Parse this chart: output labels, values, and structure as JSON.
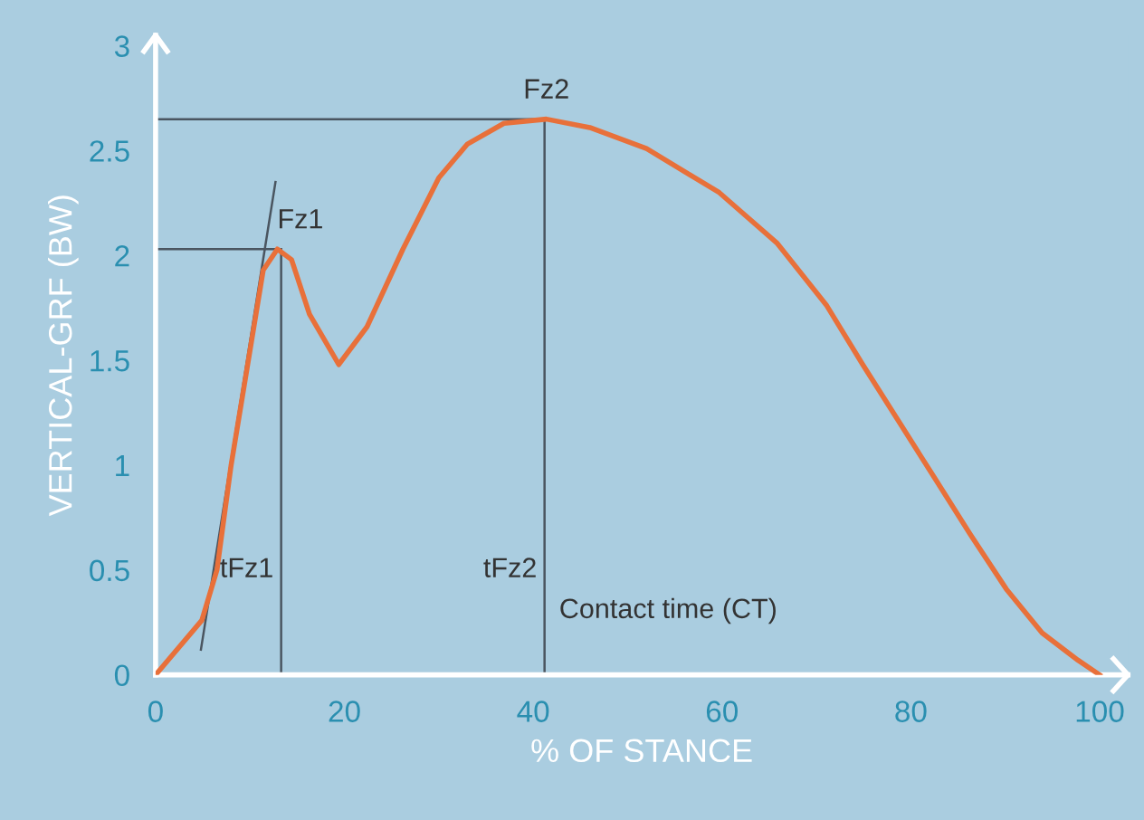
{
  "chart_data": {
    "type": "line",
    "xlabel": "% OF STANCE",
    "ylabel": "VERTICAL-GRF (BW)",
    "xlim": [
      0,
      103
    ],
    "ylim": [
      0,
      3.05
    ],
    "xticks": [
      0,
      20,
      40,
      60,
      80,
      100
    ],
    "yticks": [
      0,
      0.5,
      1,
      1.5,
      2,
      2.5,
      3
    ],
    "grid": false,
    "legend": false,
    "series": [
      {
        "color": "#e8703a",
        "x": [
          0,
          4.9,
          6.5,
          8,
          9.9,
          11.4,
          12.9,
          14.4,
          16.3,
          19.4,
          22.4,
          26.2,
          30,
          33,
          36.9,
          41.4,
          46,
          52,
          59.7,
          65.8,
          71.1,
          74.9,
          78.7,
          82.5,
          86.3,
          90.1,
          93.9,
          97.7,
          100
        ],
        "values": [
          0,
          0.26,
          0.5,
          1.0,
          1.52,
          1.93,
          2.03,
          1.98,
          1.72,
          1.48,
          1.66,
          2.03,
          2.37,
          2.53,
          2.63,
          2.65,
          2.61,
          2.51,
          2.3,
          2.06,
          1.76,
          1.48,
          1.21,
          0.94,
          0.67,
          0.41,
          0.2,
          0.07,
          0
        ]
      },
      {
        "color": "#4a5560",
        "x": [
          4.8,
          12.7
        ],
        "values": [
          0.12,
          2.35
        ]
      },
      {
        "color": "#4a5560",
        "x": [
          0,
          12.9
        ],
        "values": [
          2.03,
          2.03
        ]
      },
      {
        "color": "#4a5560",
        "x": [
          13.3,
          13.3
        ],
        "values": [
          0,
          2.03
        ]
      },
      {
        "color": "#4a5560",
        "x": [
          0,
          41.4
        ],
        "values": [
          2.65,
          2.65
        ]
      },
      {
        "color": "#4a5560",
        "x": [
          41.2,
          41.2
        ],
        "values": [
          0,
          2.65
        ]
      }
    ],
    "annotations": [
      {
        "text": "Fz1",
        "x": 12.9,
        "y": 2.03
      },
      {
        "text": "Fz2",
        "x": 41.4,
        "y": 2.65
      },
      {
        "text": "tFz1",
        "x": 13.3,
        "y": 0.5
      },
      {
        "text": "tFz2",
        "x": 41.2,
        "y": 0.5
      },
      "Contact time (CT)"
    ]
  }
}
